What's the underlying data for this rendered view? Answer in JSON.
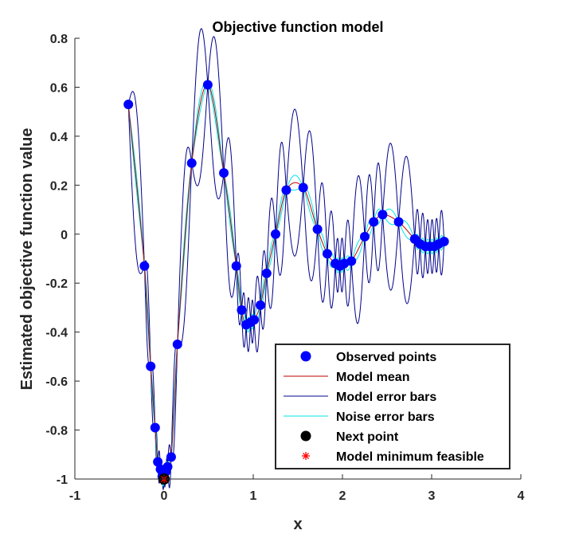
{
  "chart_data": {
    "type": "line",
    "title": "Objective function model",
    "xlabel": "x",
    "ylabel": "Estimated objective function value",
    "xlim": [
      -1,
      4
    ],
    "ylim": [
      -1,
      0.8
    ],
    "xticks": [
      -1,
      0,
      1,
      2,
      3,
      4
    ],
    "xtick_labels": [
      "-1",
      "0",
      "1",
      "2",
      "3",
      "4"
    ],
    "yticks": [
      -1,
      -0.8,
      -0.6,
      -0.4,
      -0.2,
      0,
      0.2,
      0.4,
      0.6,
      0.8
    ],
    "ytick_labels": [
      "-1",
      "-0.8",
      "-0.6",
      "-0.4",
      "-0.2",
      "0",
      "0.2",
      "0.4",
      "0.6",
      "0.8"
    ],
    "grid": false,
    "legend_position": "bottom-right",
    "colors": {
      "observed": "#0000ff",
      "model_mean": "#c00000",
      "model_error": "#00008b",
      "noise_error": "#00e5e5",
      "next_point": "#000000",
      "model_minimum": "#ff0000"
    },
    "legend": [
      {
        "label": "Observed points",
        "marker": "dot",
        "color": "#0000ff"
      },
      {
        "label": "Model mean",
        "marker": "line",
        "color": "#c00000"
      },
      {
        "label": "Model error bars",
        "marker": "line",
        "color": "#00008b"
      },
      {
        "label": "Noise error bars",
        "marker": "line",
        "color": "#00e5e5"
      },
      {
        "label": "Next point",
        "marker": "dot",
        "color": "#000000"
      },
      {
        "label": "Model minimum feasible",
        "marker": "star",
        "color": "#ff0000"
      }
    ],
    "observed_points": {
      "x": [
        -0.4,
        -0.22,
        -0.15,
        -0.1,
        -0.07,
        -0.04,
        -0.02,
        0.0,
        0.02,
        0.04,
        0.08,
        0.15,
        0.31,
        0.49,
        0.67,
        0.81,
        0.87,
        0.92,
        0.97,
        1.01,
        1.08,
        1.15,
        1.25,
        1.37,
        1.56,
        1.72,
        1.83,
        1.92,
        1.97,
        2.02,
        2.1,
        2.25,
        2.35,
        2.45,
        2.63,
        2.81,
        2.87,
        2.93,
        2.98,
        3.03,
        3.08,
        3.14
      ],
      "y": [
        0.53,
        -0.13,
        -0.54,
        -0.79,
        -0.93,
        -0.96,
        -0.99,
        -1.0,
        -0.97,
        -0.95,
        -0.91,
        -0.45,
        0.29,
        0.61,
        0.25,
        -0.13,
        -0.31,
        -0.37,
        -0.36,
        -0.35,
        -0.29,
        -0.16,
        0.0,
        0.18,
        0.19,
        0.02,
        -0.08,
        -0.12,
        -0.13,
        -0.12,
        -0.11,
        -0.01,
        0.05,
        0.08,
        0.05,
        -0.02,
        -0.04,
        -0.05,
        -0.05,
        -0.05,
        -0.04,
        -0.03
      ]
    },
    "model_mean": {
      "x": [
        -0.4,
        -0.22,
        -0.15,
        -0.1,
        -0.07,
        -0.04,
        -0.02,
        0.0,
        0.02,
        0.04,
        0.08,
        0.15,
        0.31,
        0.49,
        0.67,
        0.81,
        0.87,
        0.92,
        0.97,
        1.01,
        1.08,
        1.15,
        1.25,
        1.37,
        1.56,
        1.72,
        1.83,
        1.92,
        1.97,
        2.02,
        2.1,
        2.25,
        2.35,
        2.45,
        2.63,
        2.81,
        2.87,
        2.93,
        2.98,
        3.03,
        3.08,
        3.14
      ],
      "y": [
        0.53,
        -0.13,
        -0.54,
        -0.79,
        -0.93,
        -0.96,
        -0.99,
        -1.0,
        -0.97,
        -0.95,
        -0.91,
        -0.45,
        0.29,
        0.61,
        0.25,
        -0.13,
        -0.31,
        -0.37,
        -0.36,
        -0.35,
        -0.29,
        -0.16,
        0.0,
        0.18,
        0.19,
        0.02,
        -0.08,
        -0.12,
        -0.13,
        -0.12,
        -0.11,
        -0.01,
        0.05,
        0.08,
        0.05,
        -0.02,
        -0.04,
        -0.05,
        -0.05,
        -0.05,
        -0.04,
        -0.03
      ]
    },
    "noise_error_halfwidth": 0.03,
    "model_error_halfwidth_max": 0.3,
    "next_point": {
      "x": 0.0,
      "y": -1.0
    },
    "model_minimum_feasible": {
      "x": 0.0,
      "y": -1.0
    }
  }
}
